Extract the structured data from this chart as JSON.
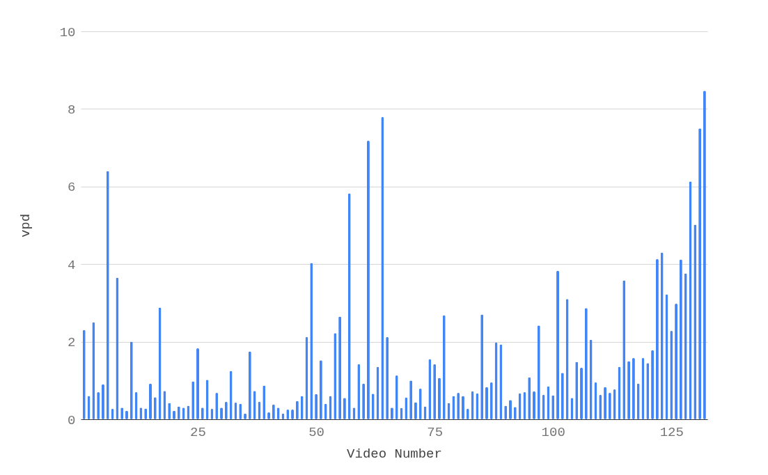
{
  "chart_data": {
    "type": "bar",
    "xlabel": "Video Number",
    "ylabel": "vpd",
    "x": [
      1,
      2,
      3,
      4,
      5,
      6,
      7,
      8,
      9,
      10,
      11,
      12,
      13,
      14,
      15,
      16,
      17,
      18,
      19,
      20,
      21,
      22,
      23,
      24,
      25,
      26,
      27,
      28,
      29,
      30,
      31,
      32,
      33,
      34,
      35,
      36,
      37,
      38,
      39,
      40,
      41,
      42,
      43,
      44,
      45,
      46,
      47,
      48,
      49,
      50,
      51,
      52,
      53,
      54,
      55,
      56,
      57,
      58,
      59,
      60,
      61,
      62,
      63,
      64,
      65,
      66,
      67,
      68,
      69,
      70,
      71,
      72,
      73,
      74,
      75,
      76,
      77,
      78,
      79,
      80,
      81,
      82,
      83,
      84,
      85,
      86,
      87,
      88,
      89,
      90,
      91,
      92,
      93,
      94,
      95,
      96,
      97,
      98,
      99,
      100,
      101,
      102,
      103,
      104,
      105,
      106,
      107,
      108,
      109,
      110,
      111,
      112,
      113,
      114,
      115,
      116,
      117,
      118,
      119,
      120,
      121,
      122,
      123,
      124,
      125,
      126,
      127,
      128,
      129,
      130,
      131,
      132
    ],
    "values": [
      2.3,
      0.6,
      2.5,
      0.7,
      0.9,
      6.4,
      0.27,
      3.65,
      0.3,
      0.22,
      2.0,
      0.7,
      0.3,
      0.28,
      0.92,
      0.57,
      2.88,
      0.73,
      0.42,
      0.22,
      0.33,
      0.3,
      0.35,
      0.98,
      1.83,
      0.3,
      1.02,
      0.27,
      0.68,
      0.3,
      0.45,
      1.25,
      0.43,
      0.4,
      0.15,
      1.75,
      0.73,
      0.45,
      0.87,
      0.18,
      0.38,
      0.3,
      0.15,
      0.25,
      0.25,
      0.47,
      0.6,
      2.12,
      4.03,
      0.65,
      1.52,
      0.4,
      0.6,
      2.22,
      2.65,
      0.55,
      5.82,
      0.3,
      1.42,
      0.92,
      7.18,
      0.66,
      1.35,
      7.79,
      2.12,
      0.3,
      1.13,
      0.29,
      0.56,
      1.0,
      0.44,
      0.79,
      0.33,
      1.55,
      1.42,
      1.07,
      2.68,
      0.42,
      0.6,
      0.68,
      0.6,
      0.27,
      0.72,
      0.67,
      2.7,
      0.83,
      0.95,
      1.98,
      1.93,
      0.35,
      0.5,
      0.32,
      0.67,
      0.7,
      1.08,
      0.72,
      2.42,
      0.63,
      0.85,
      0.62,
      3.83,
      1.2,
      3.1,
      0.55,
      1.48,
      1.33,
      2.87,
      2.05,
      0.95,
      0.63,
      0.83,
      0.68,
      0.77,
      1.35,
      3.58,
      1.5,
      1.58,
      0.92,
      1.58,
      1.45,
      1.78,
      4.13,
      4.3,
      3.22,
      2.28,
      2.98,
      4.12,
      3.76,
      6.13,
      5.02,
      7.5,
      8.47
    ],
    "color": "#4285f4",
    "xlim": [
      0.3,
      132.6
    ],
    "xticks": [
      25,
      50,
      75,
      100,
      125
    ],
    "ylim": [
      0,
      10
    ],
    "yticks": [
      0,
      2,
      4,
      6,
      8,
      10
    ],
    "grid": "y"
  }
}
